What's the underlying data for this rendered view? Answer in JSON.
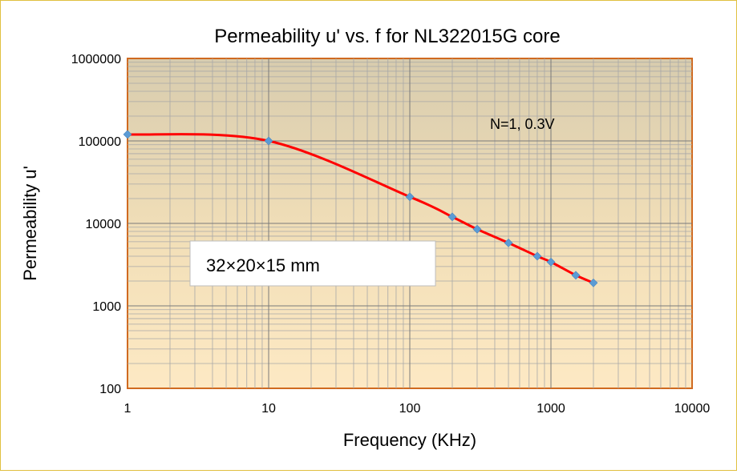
{
  "chart_data": {
    "type": "line",
    "title": "Permeability u'  vs. f  for NL322015G core",
    "xlabel": "Frequency  (KHz)",
    "ylabel": "Permeability   u'",
    "x_scale": "log",
    "y_scale": "log",
    "xlim": [
      1,
      10000
    ],
    "ylim": [
      100,
      1000000
    ],
    "x_ticks": [
      "1",
      "10",
      "100",
      "1000",
      "10000"
    ],
    "y_ticks": [
      "100",
      "1000",
      "10000",
      "100000",
      "1000000"
    ],
    "grid": true,
    "legend": "none",
    "series": [
      {
        "line_color": "#ff0000",
        "marker_color": "#5b9bd5",
        "x": [
          1,
          10,
          100,
          200,
          300,
          500,
          800,
          1000,
          1500,
          2000
        ],
        "y": [
          120000,
          100000,
          21000,
          12000,
          8500,
          5800,
          4000,
          3400,
          2350,
          1900
        ]
      }
    ],
    "annotations": {
      "condition": "N=1,  0.3V",
      "dimensions": "32×20×15 mm"
    }
  }
}
